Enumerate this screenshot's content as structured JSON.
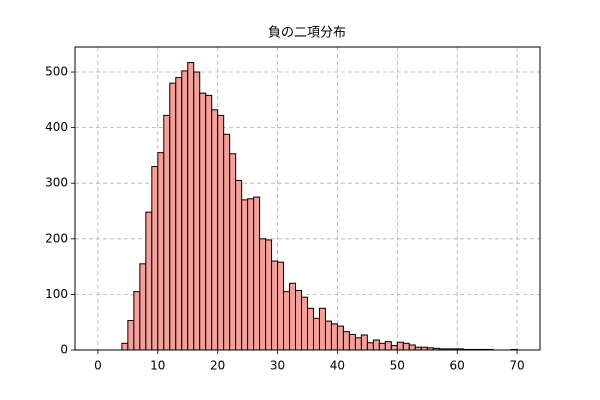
{
  "chart_data": {
    "type": "histogram",
    "title": "負の二項分布",
    "bins": [
      4,
      5,
      6,
      7,
      8,
      9,
      10,
      11,
      12,
      13,
      14,
      15,
      16,
      17,
      18,
      19,
      20,
      21,
      22,
      23,
      24,
      25,
      26,
      27,
      28,
      29,
      30,
      31,
      32,
      33,
      34,
      35,
      36,
      37,
      38,
      39,
      40,
      41,
      42,
      43,
      44,
      45,
      46,
      47,
      48,
      49,
      50,
      51,
      52,
      53,
      54,
      55,
      56,
      57,
      58,
      59,
      60,
      61,
      62,
      63,
      64,
      65,
      66,
      67,
      68,
      69,
      70
    ],
    "values": [
      12,
      53,
      105,
      155,
      248,
      330,
      355,
      422,
      480,
      490,
      502,
      517,
      500,
      462,
      458,
      432,
      422,
      388,
      353,
      305,
      270,
      272,
      275,
      200,
      198,
      160,
      158,
      105,
      120,
      107,
      95,
      75,
      57,
      75,
      52,
      47,
      43,
      33,
      28,
      22,
      27,
      13,
      18,
      12,
      15,
      8,
      14,
      12,
      9,
      5,
      5,
      4,
      3,
      2,
      2,
      2,
      2,
      1,
      1,
      1,
      1,
      1,
      0,
      0,
      0,
      1
    ],
    "color": "#f4a09a",
    "edgecolor": "#000000",
    "xlim": [
      -3.83,
      73.83
    ],
    "ylim": [
      0,
      545
    ],
    "xticks": [
      0,
      10,
      20,
      30,
      40,
      50,
      60,
      70
    ],
    "yticks": [
      0,
      100,
      200,
      300,
      400,
      500
    ],
    "grid": true
  }
}
